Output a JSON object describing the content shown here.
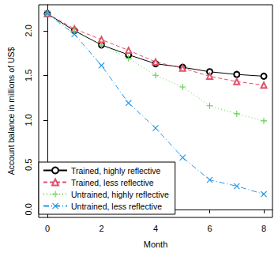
{
  "chart_data": {
    "type": "line",
    "x_label": "Month",
    "y_label": "Account balance in millions of US$",
    "x": [
      0,
      1,
      2,
      3,
      4,
      5,
      6,
      7,
      8
    ],
    "xlim": [
      -0.32,
      8.32
    ],
    "xticks": [
      0,
      2,
      4,
      6,
      8
    ],
    "ylim": [
      -0.09,
      2.29
    ],
    "yticks": [
      {
        "value": 0,
        "label": "0.0"
      },
      {
        "value": 0.5,
        "label": "0.5"
      },
      {
        "value": 1,
        "label": "1.0"
      },
      {
        "value": 1.5,
        "label": "1.5"
      },
      {
        "value": 2,
        "label": "2.0"
      }
    ],
    "grid": false,
    "legend": "lower left",
    "series": [
      {
        "name": "Trained, highly reflective",
        "color": "#000000",
        "marker": "circle",
        "line_style": "solid",
        "values": [
          2.19,
          2.0,
          1.84,
          1.73,
          1.63,
          1.59,
          1.54,
          1.51,
          1.49
        ]
      },
      {
        "name": "Trained, less reflective",
        "color": "#DF536B",
        "marker": "triangle",
        "line_style": "dashed",
        "values": [
          2.19,
          2.02,
          1.9,
          1.78,
          1.65,
          1.58,
          1.49,
          1.43,
          1.39
        ]
      },
      {
        "name": "Untrained, highly reflective",
        "color": "#61D04F",
        "marker": "plus",
        "line_style": "dotted",
        "values": [
          2.19,
          1.99,
          1.84,
          1.69,
          1.5,
          1.37,
          1.16,
          1.07,
          0.99
        ]
      },
      {
        "name": "Untrained, less reflective",
        "color": "#2297E6",
        "marker": "x",
        "line_style": "dashdot",
        "values": [
          2.19,
          1.96,
          1.61,
          1.19,
          0.91,
          0.58,
          0.33,
          0.26,
          0.17
        ]
      }
    ]
  }
}
